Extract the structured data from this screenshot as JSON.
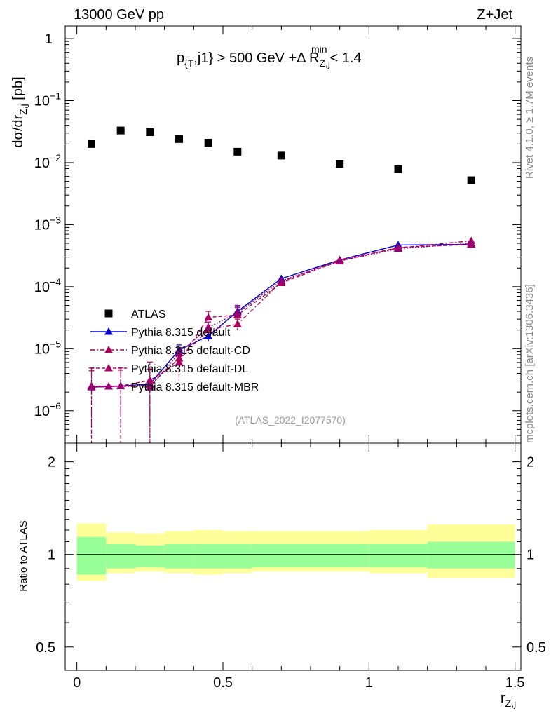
{
  "header": {
    "energy_label": "13000 GeV pp",
    "process_label": "Z+Jet"
  },
  "side_labels": {
    "rivet": "Rivet 4.1.0, ≥ 1.7M events",
    "mcplots": "mcplots.cern.ch [arXiv:1306.3436]"
  },
  "colors": {
    "atlas": "#000000",
    "default": "#0000cc",
    "cd": "#aa0055",
    "dl": "#aa0066",
    "mbr": "#990077",
    "band_inner": "#99ff99",
    "band_outer": "#ffff99",
    "label_gray": "#999999"
  },
  "chart_data": {
    "type": "scatter",
    "title_parts": {
      "pt": "p",
      "pt_sub": "{T",
      "pt_rest": ",j1} > 500 GeV +Δ R",
      "dr_sub": "Z,j",
      "dr_sup": "min",
      "cut": "< 1.4"
    },
    "analysis_id": "(ATLAS_2022_I2077570)",
    "ylabel": {
      "main": "dσ/dr",
      "sub": "Z,j",
      "unit": " [pb]"
    },
    "xlabel": {
      "main": "r",
      "sub": "Z,j"
    },
    "ratio_ylabel": "Ratio to ATLAS",
    "xlim": [
      -0.04,
      1.52
    ],
    "ylim": [
      3e-07,
      1.6
    ],
    "yscale": "log",
    "ratio_ylim": [
      0.42,
      2.3
    ],
    "x_ticks": [
      0,
      0.5,
      1,
      1.5
    ],
    "x_tick_labels": [
      "0",
      "0.5",
      "1",
      "1.5"
    ],
    "y_tick_labels": [
      {
        "exp": null,
        "text": "1"
      },
      {
        "exp": "−1",
        "text": "10"
      },
      {
        "exp": "−2",
        "text": "10"
      },
      {
        "exp": "−3",
        "text": "10"
      },
      {
        "exp": "−4",
        "text": "10"
      },
      {
        "exp": "−5",
        "text": "10"
      },
      {
        "exp": "−6",
        "text": "10"
      }
    ],
    "ratio_ticks": [
      0.5,
      1,
      2
    ],
    "ratio_tick_labels": [
      "0.5",
      "1",
      "2"
    ],
    "x": [
      0.05,
      0.15,
      0.25,
      0.35,
      0.45,
      0.55,
      0.7,
      0.9,
      1.1,
      1.35
    ],
    "x_bins": [
      [
        0,
        0.1
      ],
      [
        0.1,
        0.2
      ],
      [
        0.2,
        0.3
      ],
      [
        0.3,
        0.4
      ],
      [
        0.4,
        0.5
      ],
      [
        0.5,
        0.6
      ],
      [
        0.6,
        0.8
      ],
      [
        0.8,
        1.0
      ],
      [
        1.0,
        1.2
      ],
      [
        1.2,
        1.5
      ]
    ],
    "series": [
      {
        "name": "ATLAS",
        "marker": "square",
        "values": [
          0.02,
          0.033,
          0.031,
          0.024,
          0.021,
          0.015,
          0.013,
          0.0096,
          0.0078,
          0.0052
        ]
      },
      {
        "name": "Pythia 8.315 default",
        "marker": "triangle",
        "line": "solid",
        "values": [
          2.4e-06,
          2.5e-06,
          2.7e-06,
          9.5e-06,
          1.6e-05,
          4e-05,
          0.000135,
          0.00027,
          0.00047,
          0.00048
        ],
        "err": [
          0,
          0,
          0,
          2e-06,
          3e-06,
          8e-06,
          0,
          0,
          0,
          0
        ]
      },
      {
        "name": "Pythia 8.315 default-CD",
        "marker": "triangle",
        "line": "dashdot",
        "values": [
          2.4e-06,
          2.5e-06,
          2.6e-06,
          7e-06,
          2e-05,
          2.5e-05,
          0.00012,
          0.00027,
          0.00042,
          0.00055
        ],
        "err": [
          2e-06,
          2e-06,
          2e-06,
          2.5e-06,
          4e-06,
          5e-06,
          0,
          0,
          0,
          0
        ]
      },
      {
        "name": "Pythia 8.315 default-DL",
        "marker": "triangle",
        "line": "dashed",
        "values": [
          2.5e-06,
          2.5e-06,
          3.1e-06,
          6e-06,
          3.2e-05,
          3.5e-05,
          0.000115,
          0.00026,
          0.00043,
          0.00048
        ],
        "err": [
          2.4e-06,
          2.4e-06,
          3e-06,
          3e-06,
          8e-06,
          1.5e-05,
          0,
          0,
          0,
          0
        ]
      },
      {
        "name": "Pythia 8.315 default-MBR",
        "marker": "triangle",
        "line": "dotted",
        "values": [
          2.4e-06,
          2.5e-06,
          2.4e-06,
          8.5e-06,
          2.2e-05,
          3.8e-05,
          0.000125,
          0.00026,
          0.00041,
          0.0005
        ],
        "err": [
          0,
          0,
          2.3e-06,
          2e-06,
          5e-06,
          8e-06,
          0,
          0,
          0,
          0
        ]
      }
    ],
    "ratio_band_inner": [
      [
        0.86,
        1.14
      ],
      [
        0.9,
        1.08
      ],
      [
        0.91,
        1.07
      ],
      [
        0.9,
        1.08
      ],
      [
        0.9,
        1.08
      ],
      [
        0.9,
        1.08
      ],
      [
        0.91,
        1.08
      ],
      [
        0.91,
        1.08
      ],
      [
        0.91,
        1.08
      ],
      [
        0.9,
        1.1
      ]
    ],
    "ratio_band_outer": [
      [
        0.82,
        1.26
      ],
      [
        0.87,
        1.18
      ],
      [
        0.88,
        1.17
      ],
      [
        0.87,
        1.19
      ],
      [
        0.86,
        1.2
      ],
      [
        0.87,
        1.19
      ],
      [
        0.88,
        1.19
      ],
      [
        0.88,
        1.19
      ],
      [
        0.87,
        1.2
      ],
      [
        0.84,
        1.25
      ]
    ]
  }
}
